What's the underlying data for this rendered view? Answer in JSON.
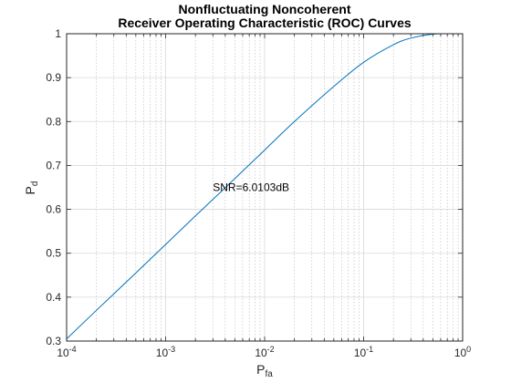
{
  "chart_data": {
    "type": "line",
    "title": [
      "Nonfluctuating Noncoherent",
      "Receiver Operating Characteristic (ROC) Curves"
    ],
    "xlabel": "P",
    "xlabel_sub": "fa",
    "ylabel": "P",
    "ylabel_sub": "d",
    "xscale": "log",
    "xlim": [
      0.0001,
      1
    ],
    "ylim": [
      0.3,
      1
    ],
    "xticks": [
      0.0001,
      0.001,
      0.01,
      0.1,
      1
    ],
    "xtick_labels": [
      {
        "base": "10",
        "exp": "-4"
      },
      {
        "base": "10",
        "exp": "-3"
      },
      {
        "base": "10",
        "exp": "-2"
      },
      {
        "base": "10",
        "exp": "-1"
      },
      {
        "base": "10",
        "exp": "0"
      }
    ],
    "yticks": [
      0.3,
      0.4,
      0.5,
      0.6,
      0.7,
      0.8,
      0.9,
      1
    ],
    "ytick_labels": [
      "0.3",
      "0.4",
      "0.5",
      "0.6",
      "0.7",
      "0.8",
      "0.9",
      "1"
    ],
    "grid": true,
    "minor_grid_x": true,
    "series_color": "#0072BD",
    "series": [
      {
        "x": [
          0.0001,
          0.0002,
          0.0005,
          0.001,
          0.002,
          0.005,
          0.01,
          0.02,
          0.05,
          0.1,
          0.2,
          0.3,
          0.5,
          0.7,
          1
        ],
        "y": [
          0.305,
          0.37,
          0.455,
          0.52,
          0.585,
          0.67,
          0.735,
          0.8,
          0.88,
          0.935,
          0.975,
          0.99,
          0.999,
          1.0,
          1.0
        ]
      }
    ],
    "annotation": {
      "text": "SNR=6.0103dB",
      "x": 0.003,
      "y": 0.65
    }
  }
}
